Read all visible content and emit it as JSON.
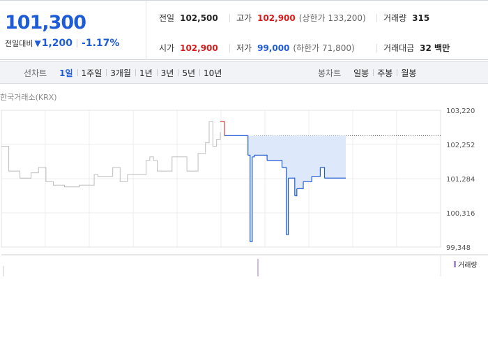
{
  "quote": {
    "price": "101,300",
    "change_label": "전일대비",
    "change_direction_icon": "down-triangle-icon",
    "change_value": "1,200",
    "change_percent": "-1.17%",
    "prev_close": {
      "label": "전일",
      "value": "102,500"
    },
    "high": {
      "label": "고가",
      "value": "102,900",
      "limit": "(상한가 133,200)"
    },
    "volume": {
      "label": "거래량",
      "value": "315"
    },
    "open": {
      "label": "시가",
      "value": "102,900"
    },
    "low": {
      "label": "저가",
      "value": "99,000",
      "limit": "(하한가 71,800)"
    },
    "trade_value": {
      "label": "거래대금",
      "value": "32 백만"
    }
  },
  "tabs": {
    "line_label": "선차트",
    "line_items": [
      "1일",
      "1주일",
      "3개월",
      "1년",
      "3년",
      "5년",
      "10년"
    ],
    "line_active": "1일",
    "candle_label": "봉차트",
    "candle_items": [
      "일봉",
      "주봉",
      "월봉"
    ]
  },
  "chart": {
    "market_label": "한국거래소(KRX)",
    "volume_legend": "거래량",
    "colors": {
      "up": "#d91a1a",
      "down": "#1e5bd6",
      "past": "#bdbdbd",
      "fill": "#dde9fb",
      "volume": "#a98bd9"
    }
  },
  "chart_data": {
    "type": "line",
    "ylim": [
      99348,
      103220
    ],
    "y_ticks": [
      "103,220",
      "102,252",
      "101,284",
      "100,316",
      "99,348"
    ],
    "reference_price": 102500,
    "grid": true,
    "series": [
      {
        "values_past": [
          102200,
          102200,
          101500,
          101500,
          101500,
          101300,
          101300,
          101300,
          101450,
          101450,
          101600,
          101600,
          101200,
          101200,
          101100,
          101100,
          101100,
          101050,
          101050,
          101050,
          101050,
          101100,
          101100,
          101100,
          101100,
          101400,
          101350,
          101350,
          101350,
          101350,
          101600,
          101600,
          101200,
          101200,
          101400,
          101400,
          101400,
          101400,
          101400,
          101800,
          101900,
          101800,
          101500,
          101500,
          101500,
          101500,
          101900,
          101900,
          101900,
          101900,
          101500,
          101500,
          101500,
          102000,
          102000,
          102300,
          102900,
          102200,
          102400,
          102600
        ],
        "values_today": [
          102900,
          102900,
          102500,
          102500,
          102500,
          102500,
          102500,
          102500,
          102500,
          102500,
          102500,
          102500,
          102500,
          101950,
          99500,
          101900,
          101950,
          101950,
          101950,
          101950,
          101950,
          101950,
          101800,
          101800,
          101800,
          101800,
          101800,
          101800,
          101800,
          101600,
          101600,
          99700,
          101300,
          101300,
          101300,
          100800,
          101000,
          101000,
          101000,
          101200,
          101200,
          101200,
          101200,
          101350,
          101350,
          101350,
          101350,
          101600,
          101600,
          101300,
          101300,
          101300,
          101300,
          101300,
          101300,
          101300,
          101300,
          101300,
          101300,
          101300
        ]
      }
    ]
  }
}
